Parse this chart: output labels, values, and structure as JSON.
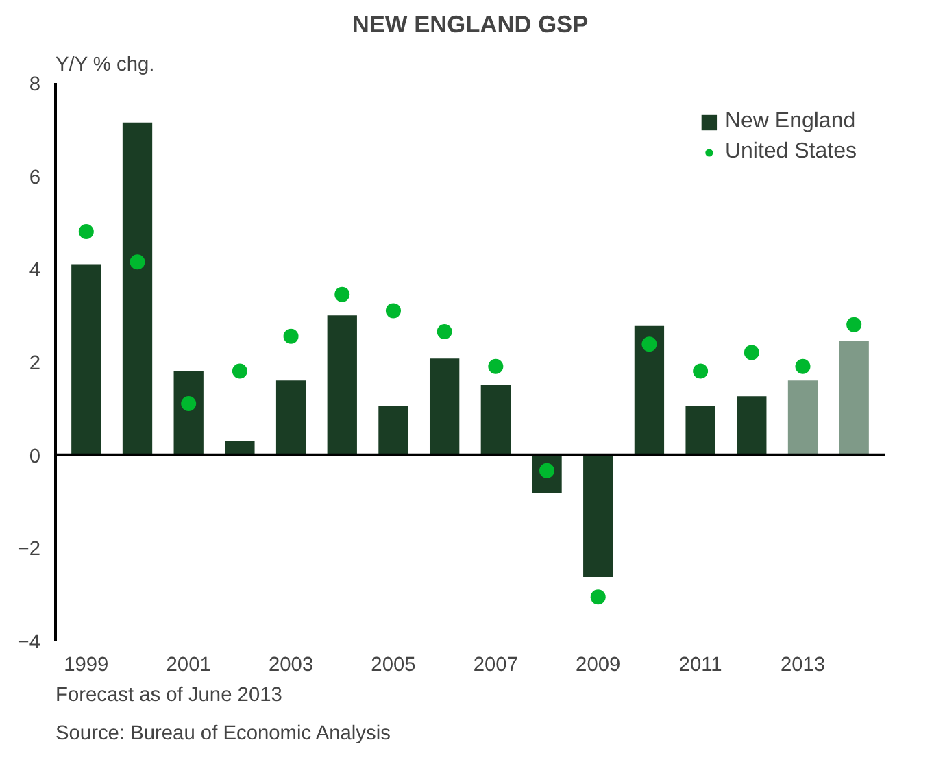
{
  "chart_data": {
    "type": "bar",
    "title": "NEW ENGLAND GSP",
    "ylabel": "Y/Y % chg.",
    "categories": [
      "1999",
      null,
      "2001",
      null,
      "2003",
      null,
      "2005",
      null,
      "2007",
      null,
      "2009",
      null,
      "2011",
      null,
      "2013",
      null
    ],
    "series": [
      {
        "name": "New England",
        "color": "#1a3d24",
        "colors": [
          "#1a3d24",
          "#1a3d24",
          "#1a3d24",
          "#1a3d24",
          "#1a3d24",
          "#1a3d24",
          "#1a3d24",
          "#1a3d24",
          "#1a3d24",
          "#1a3d24",
          "#1a3d24",
          "#1a3d24",
          "#1a3d24",
          "#1a3d24",
          "#7f9a88",
          "#7f9a88"
        ],
        "values": [
          4.1,
          7.15,
          1.8,
          0.3,
          1.6,
          3.0,
          1.05,
          2.07,
          1.5,
          -0.83,
          -2.63,
          2.77,
          1.05,
          1.26,
          1.6,
          2.45
        ]
      },
      {
        "name": "United States",
        "type": "scatter",
        "color": "#00b82e",
        "marker": "circle",
        "values": [
          4.8,
          4.15,
          1.1,
          1.8,
          2.55,
          3.45,
          3.1,
          2.65,
          1.9,
          -0.34,
          -3.06,
          2.38,
          1.8,
          2.2,
          1.9,
          2.8
        ]
      }
    ],
    "ylim": [
      -4,
      8
    ],
    "yticks": [
      -4,
      -2,
      0,
      2,
      4,
      6,
      8
    ],
    "grid": false,
    "legend": "top right",
    "ref_lines": [
      {
        "axis": "y",
        "value": 0,
        "color": "#000000"
      }
    ],
    "annotations": [
      "Forecast as of June 2013",
      "Source: Bureau of Economic Analysis"
    ]
  }
}
